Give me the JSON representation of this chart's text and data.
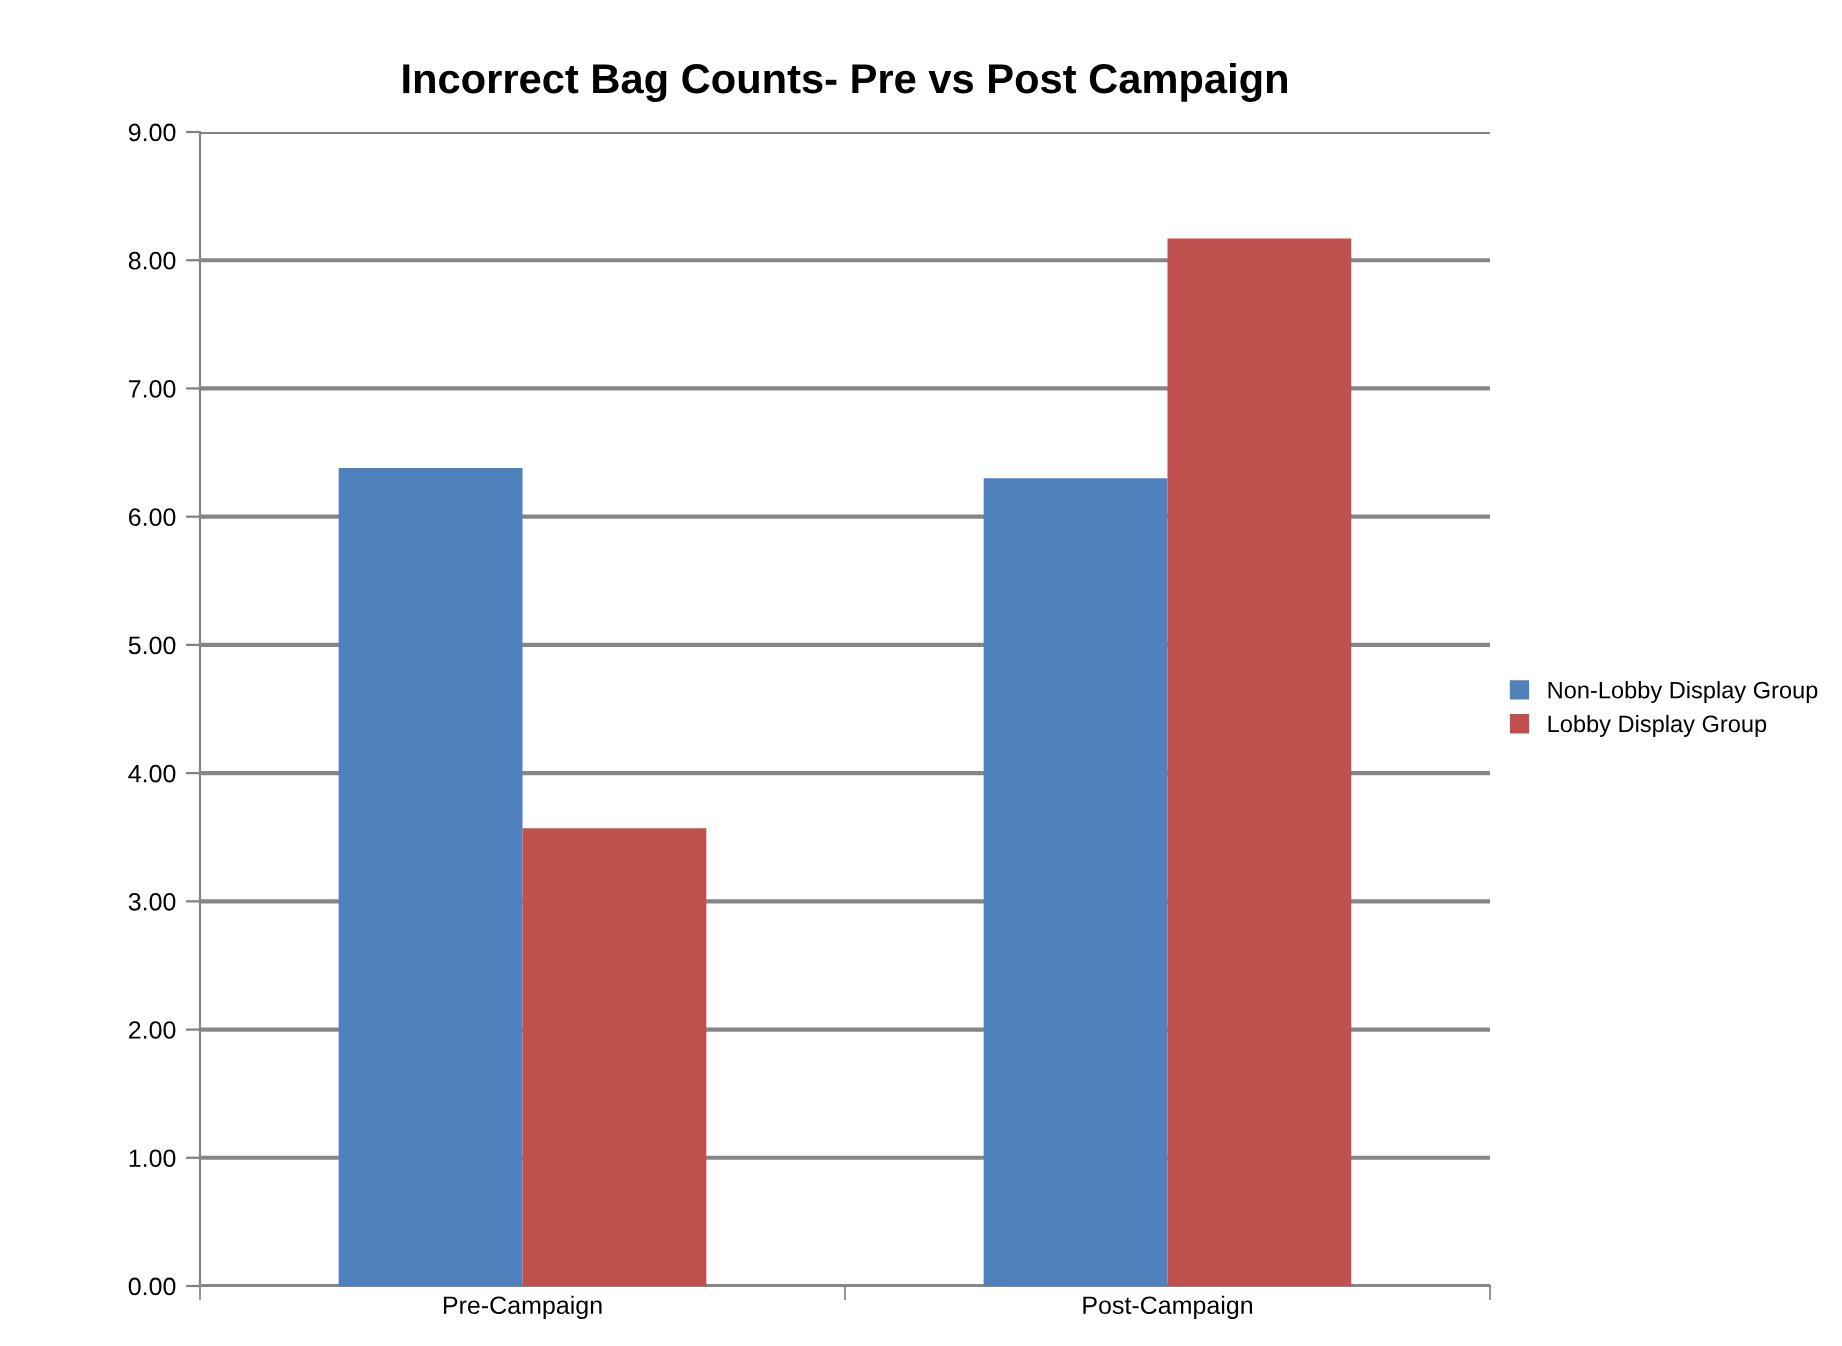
{
  "chart_data": {
    "type": "bar",
    "title": "Incorrect Bag Counts- Pre vs Post Campaign",
    "categories": [
      "Pre-Campaign",
      "Post-Campaign"
    ],
    "series": [
      {
        "name": "Non-Lobby Display Group",
        "color": "#4f81bd",
        "values": [
          6.38,
          6.3
        ]
      },
      {
        "name": "Lobby Display Group",
        "color": "#c0504d",
        "values": [
          3.57,
          8.17
        ]
      }
    ],
    "ylim": [
      0,
      9
    ],
    "yticks": [
      {
        "value": 0,
        "label": "0.00"
      },
      {
        "value": 1,
        "label": "1.00"
      },
      {
        "value": 2,
        "label": "2.00"
      },
      {
        "value": 3,
        "label": "3.00"
      },
      {
        "value": 4,
        "label": "4.00"
      },
      {
        "value": 5,
        "label": "5.00"
      },
      {
        "value": 6,
        "label": "6.00"
      },
      {
        "value": 7,
        "label": "7.00"
      },
      {
        "value": 8,
        "label": "8.00"
      },
      {
        "value": 9,
        "label": "9.00"
      }
    ],
    "grid": "y",
    "legend": "right"
  }
}
